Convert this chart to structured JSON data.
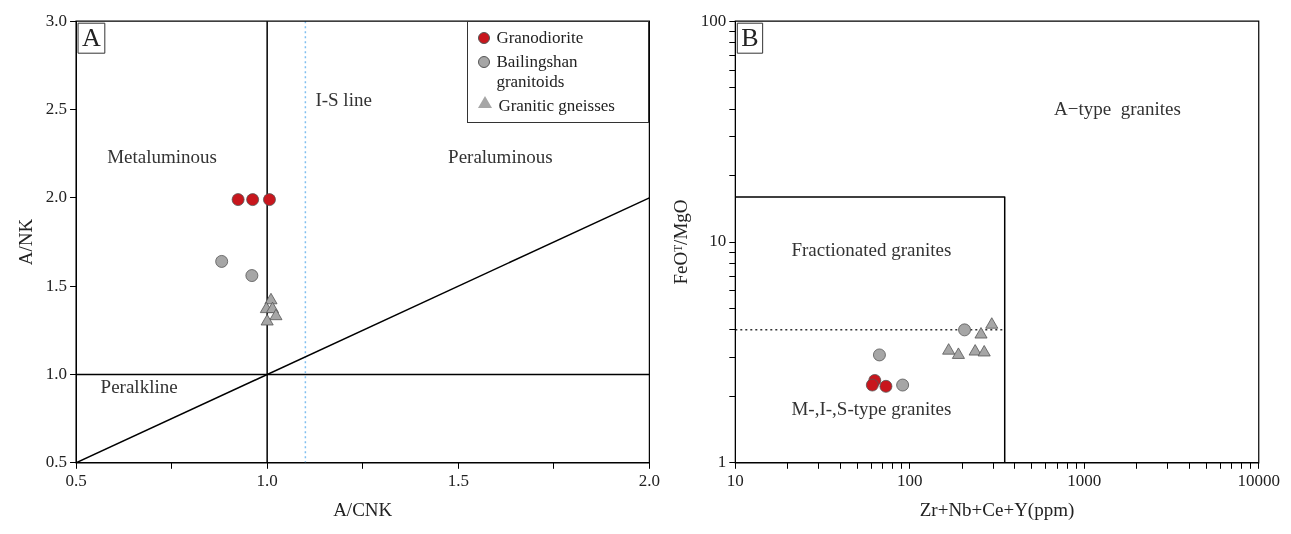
{
  "chart_data": [
    {
      "type": "scatter",
      "title": "A",
      "xlabel": "A/CNK",
      "ylabel": "A/NK",
      "xlim": [
        0.5,
        2.0
      ],
      "ylim": [
        0.5,
        3.0
      ],
      "xticks": [
        0.5,
        {
          "value": 0.75,
          "label": null
        },
        {
          "value": 1,
          "label": "1.0"
        },
        {
          "value": 1.25,
          "label": null
        },
        1.5,
        {
          "value": 1.75,
          "label": null
        },
        {
          "value": 2,
          "label": "2.0"
        }
      ],
      "yticks": [
        0.5,
        {
          "value": 1,
          "label": "1.0"
        },
        1.5,
        {
          "value": 2,
          "label": "2.0"
        },
        2.5,
        {
          "value": 3,
          "label": "3.0"
        }
      ],
      "grid": false,
      "legend": "top right",
      "series": [
        {
          "name": "Granodiorite",
          "marker": "circle",
          "color": "#c8161d",
          "x": [
            0.924,
            0.962,
            1.006
          ],
          "values": [
            1.99,
            1.99,
            1.99
          ]
        },
        {
          "name": "Bailingshan granitoids",
          "marker": "circle",
          "color": "#a6a6a6",
          "x": [
            0.881,
            0.96
          ],
          "values": [
            1.64,
            1.56
          ]
        },
        {
          "name": "Granitic gneisses",
          "marker": "triangle",
          "color": "#a6a6a6",
          "x": [
            1.01,
            0.998,
            1.014,
            1.023,
            1.0
          ],
          "values": [
            1.42,
            1.37,
            1.37,
            1.33,
            1.3
          ]
        },
        {
          "type": "line",
          "marker": "none",
          "line_style": "solid",
          "color": "#000000",
          "x": [
            0.5,
            2.0
          ],
          "values": [
            0.5,
            2.0
          ]
        }
      ],
      "ref_lines": [
        {
          "axis": "x",
          "value": 1.0,
          "color": "#000000",
          "line_style": "solid"
        },
        {
          "axis": "y",
          "value": 1.0,
          "color": "#000000",
          "line_style": "solid"
        },
        {
          "axis": "x",
          "value": 1.1,
          "label": "I-S line",
          "color": "#7fbff0",
          "line_style": "dotted"
        }
      ],
      "annotations": [
        "Metaluminous",
        "Peraluminous",
        "Peralkline"
      ]
    },
    {
      "type": "scatter",
      "title": "B",
      "xlabel": "Zr+Nb+Ce+Y(ppm)",
      "ylabel": "FeOᵀ/MgO",
      "log": "xy",
      "xlim": [
        10,
        10000
      ],
      "ylim": [
        1,
        100
      ],
      "xticks": [
        10,
        {
          "value": 20,
          "label": null
        },
        {
          "value": 30,
          "label": null
        },
        {
          "value": 40,
          "label": null
        },
        {
          "value": 50,
          "label": null
        },
        {
          "value": 60,
          "label": null
        },
        {
          "value": 70,
          "label": null
        },
        {
          "value": 80,
          "label": null
        },
        {
          "value": 90,
          "label": null
        },
        100,
        {
          "value": 200,
          "label": null
        },
        {
          "value": 300,
          "label": null
        },
        {
          "value": 400,
          "label": null
        },
        {
          "value": 500,
          "label": null
        },
        {
          "value": 600,
          "label": null
        },
        {
          "value": 700,
          "label": null
        },
        {
          "value": 800,
          "label": null
        },
        {
          "value": 900,
          "label": null
        },
        1000,
        {
          "value": 2000,
          "label": null
        },
        {
          "value": 3000,
          "label": null
        },
        {
          "value": 4000,
          "label": null
        },
        {
          "value": 5000,
          "label": null
        },
        {
          "value": 6000,
          "label": null
        },
        {
          "value": 7000,
          "label": null
        },
        {
          "value": 8000,
          "label": null
        },
        {
          "value": 9000,
          "label": null
        },
        10000
      ],
      "yticks": [
        1,
        {
          "value": 2,
          "label": null
        },
        {
          "value": 3,
          "label": null
        },
        {
          "value": 4,
          "label": null
        },
        {
          "value": 5,
          "label": null
        },
        {
          "value": 6,
          "label": null
        },
        {
          "value": 7,
          "label": null
        },
        {
          "value": 8,
          "label": null
        },
        {
          "value": 9,
          "label": null
        },
        10,
        {
          "value": 20,
          "label": null
        },
        {
          "value": 30,
          "label": null
        },
        {
          "value": 40,
          "label": null
        },
        {
          "value": 50,
          "label": null
        },
        {
          "value": 60,
          "label": null
        },
        {
          "value": 70,
          "label": null
        },
        {
          "value": 80,
          "label": null
        },
        {
          "value": 90,
          "label": null
        },
        100
      ],
      "grid": false,
      "series": [
        {
          "type": "line",
          "marker": "none",
          "line_style": "solid",
          "color": "#000000",
          "x": [
            10,
            350,
            350
          ],
          "values": [
            16,
            16,
            1
          ]
        },
        {
          "type": "line",
          "marker": "none",
          "line_style": "dotted",
          "color": "#333333",
          "x": [
            10,
            350
          ],
          "values": [
            4,
            4
          ]
        },
        {
          "marker": "circle",
          "color": "#a6a6a6",
          "x": [
            67,
            91,
            206
          ],
          "values": [
            3.08,
            2.25,
            4.0
          ]
        },
        {
          "marker": "triangle",
          "color": "#a6a6a6",
          "x": [
            295,
            256,
            167,
            190,
            237,
            267
          ],
          "values": [
            4.22,
            3.81,
            3.22,
            3.08,
            3.19,
            3.16
          ]
        },
        {
          "marker": "circle",
          "color": "#c8161d",
          "x": [
            63,
            73,
            61
          ],
          "values": [
            2.36,
            2.22,
            2.25
          ]
        }
      ],
      "annotations": [
        "A−type  granites",
        "Fractionated granites",
        "M-,I-,S-type granites"
      ]
    }
  ]
}
